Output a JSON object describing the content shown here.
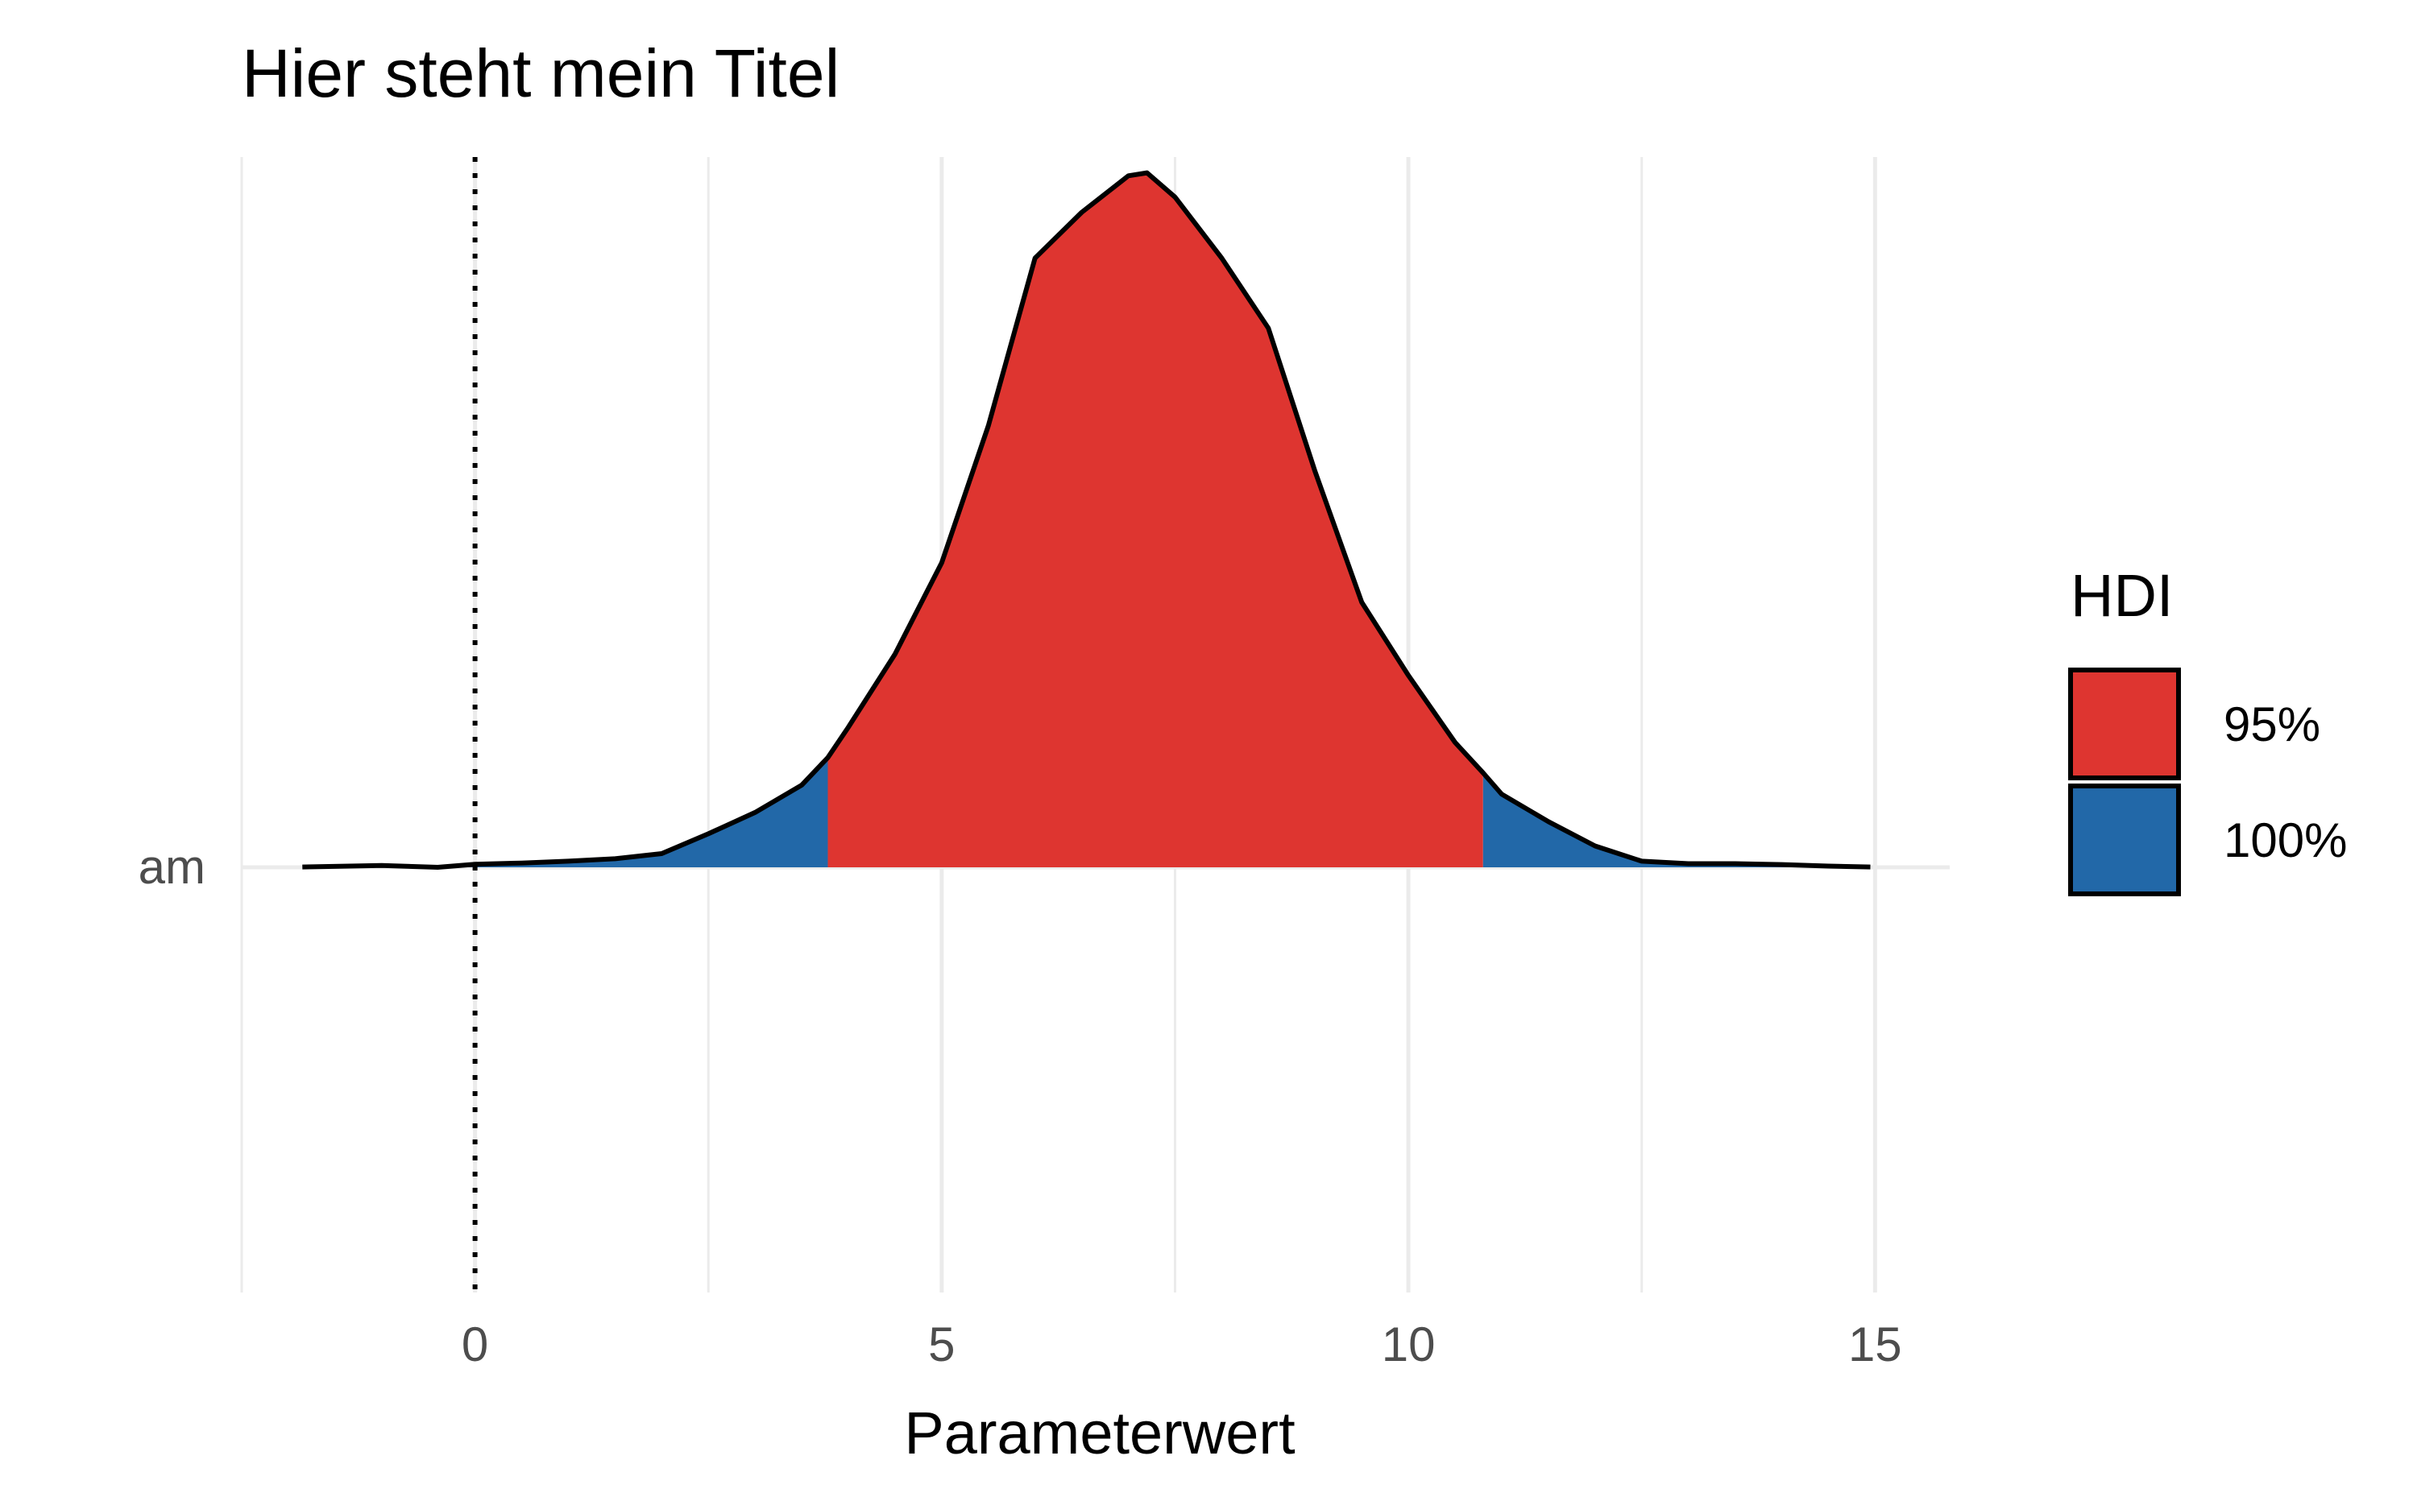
{
  "chart_data": {
    "type": "area",
    "title": "Hier steht mein Titel",
    "xlabel": "Parameterwert",
    "ylabel": "",
    "y_categories": [
      "am"
    ],
    "x_ticks": [
      0,
      5,
      10,
      15
    ],
    "xlim": [
      -2.5,
      15.8
    ],
    "ylim": [
      0,
      0.23
    ],
    "grid": true,
    "reference_line": {
      "x": 0,
      "style": "dotted"
    },
    "hdi_interval": [
      3.78,
      10.8
    ],
    "legend": {
      "title": "HDI",
      "position": "right",
      "entries": [
        {
          "label": "95%",
          "color": "#DE3530"
        },
        {
          "label": "100%",
          "color": "#2268A8"
        }
      ]
    },
    "density": {
      "x": [
        -1.85,
        -1.0,
        -0.4,
        0.0,
        0.5,
        1.0,
        1.5,
        2.0,
        2.5,
        3.0,
        3.5,
        3.78,
        4.0,
        4.5,
        5.0,
        5.5,
        6.0,
        6.5,
        7.0,
        7.2,
        7.5,
        8.0,
        8.5,
        9.0,
        9.5,
        10.0,
        10.5,
        10.8,
        11.0,
        11.5,
        12.0,
        12.5,
        13.0,
        13.5,
        14.0,
        14.5,
        14.95
      ],
      "y": [
        0.0001,
        0.0006,
        0.0,
        0.001,
        0.0014,
        0.002,
        0.0028,
        0.0045,
        0.011,
        0.018,
        0.027,
        0.036,
        0.046,
        0.07,
        0.1,
        0.145,
        0.2,
        0.215,
        0.227,
        0.228,
        0.22,
        0.2,
        0.177,
        0.13,
        0.087,
        0.063,
        0.041,
        0.031,
        0.024,
        0.015,
        0.007,
        0.002,
        0.0012,
        0.0012,
        0.0009,
        0.0004,
        0.0001
      ]
    }
  }
}
